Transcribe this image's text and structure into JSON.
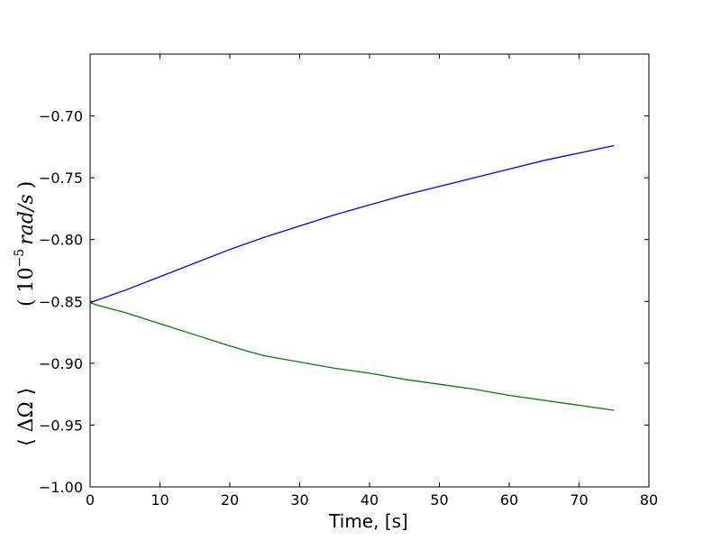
{
  "chart_data": {
    "type": "line",
    "title": "",
    "xlabel": "Time, [s]",
    "ylabel": {
      "part1": "⟨ ΔΩ ⟩",
      "part2_open": "( 10",
      "part2_sup": "−5",
      "part2_unit": "rad/s",
      "part2_close": ")"
    },
    "xlim": [
      0,
      80
    ],
    "ylim": [
      -1.0,
      -0.65
    ],
    "xticks": [
      0,
      10,
      20,
      30,
      40,
      50,
      60,
      70,
      80
    ],
    "xtick_labels": [
      "0",
      "10",
      "20",
      "30",
      "40",
      "50",
      "60",
      "70",
      "80"
    ],
    "yticks": [
      -1.0,
      -0.95,
      -0.9,
      -0.85,
      -0.8,
      -0.75,
      -0.7
    ],
    "ytick_labels": [
      "−1.00",
      "−0.95",
      "−0.90",
      "−0.85",
      "−0.80",
      "−0.75",
      "−0.70"
    ],
    "grid": false,
    "legend": "none",
    "series": [
      {
        "color": "#0000ff",
        "x": [
          0,
          5,
          10,
          15,
          20,
          25,
          30,
          35,
          40,
          45,
          50,
          55,
          60,
          65,
          70,
          75
        ],
        "y": [
          -0.851,
          -0.841,
          -0.83,
          -0.819,
          -0.808,
          -0.798,
          -0.789,
          -0.78,
          -0.772,
          -0.764,
          -0.757,
          -0.75,
          -0.743,
          -0.736,
          -0.73,
          -0.724
        ]
      },
      {
        "color": "#008000",
        "x": [
          0,
          1,
          5,
          10,
          15,
          20,
          23,
          25,
          30,
          35,
          40,
          45,
          50,
          55,
          60,
          65,
          70,
          75
        ],
        "y": [
          -0.851,
          -0.853,
          -0.859,
          -0.868,
          -0.877,
          -0.886,
          -0.891,
          -0.894,
          -0.899,
          -0.904,
          -0.908,
          -0.913,
          -0.917,
          -0.921,
          -0.926,
          -0.93,
          -0.934,
          -0.938
        ]
      }
    ]
  }
}
